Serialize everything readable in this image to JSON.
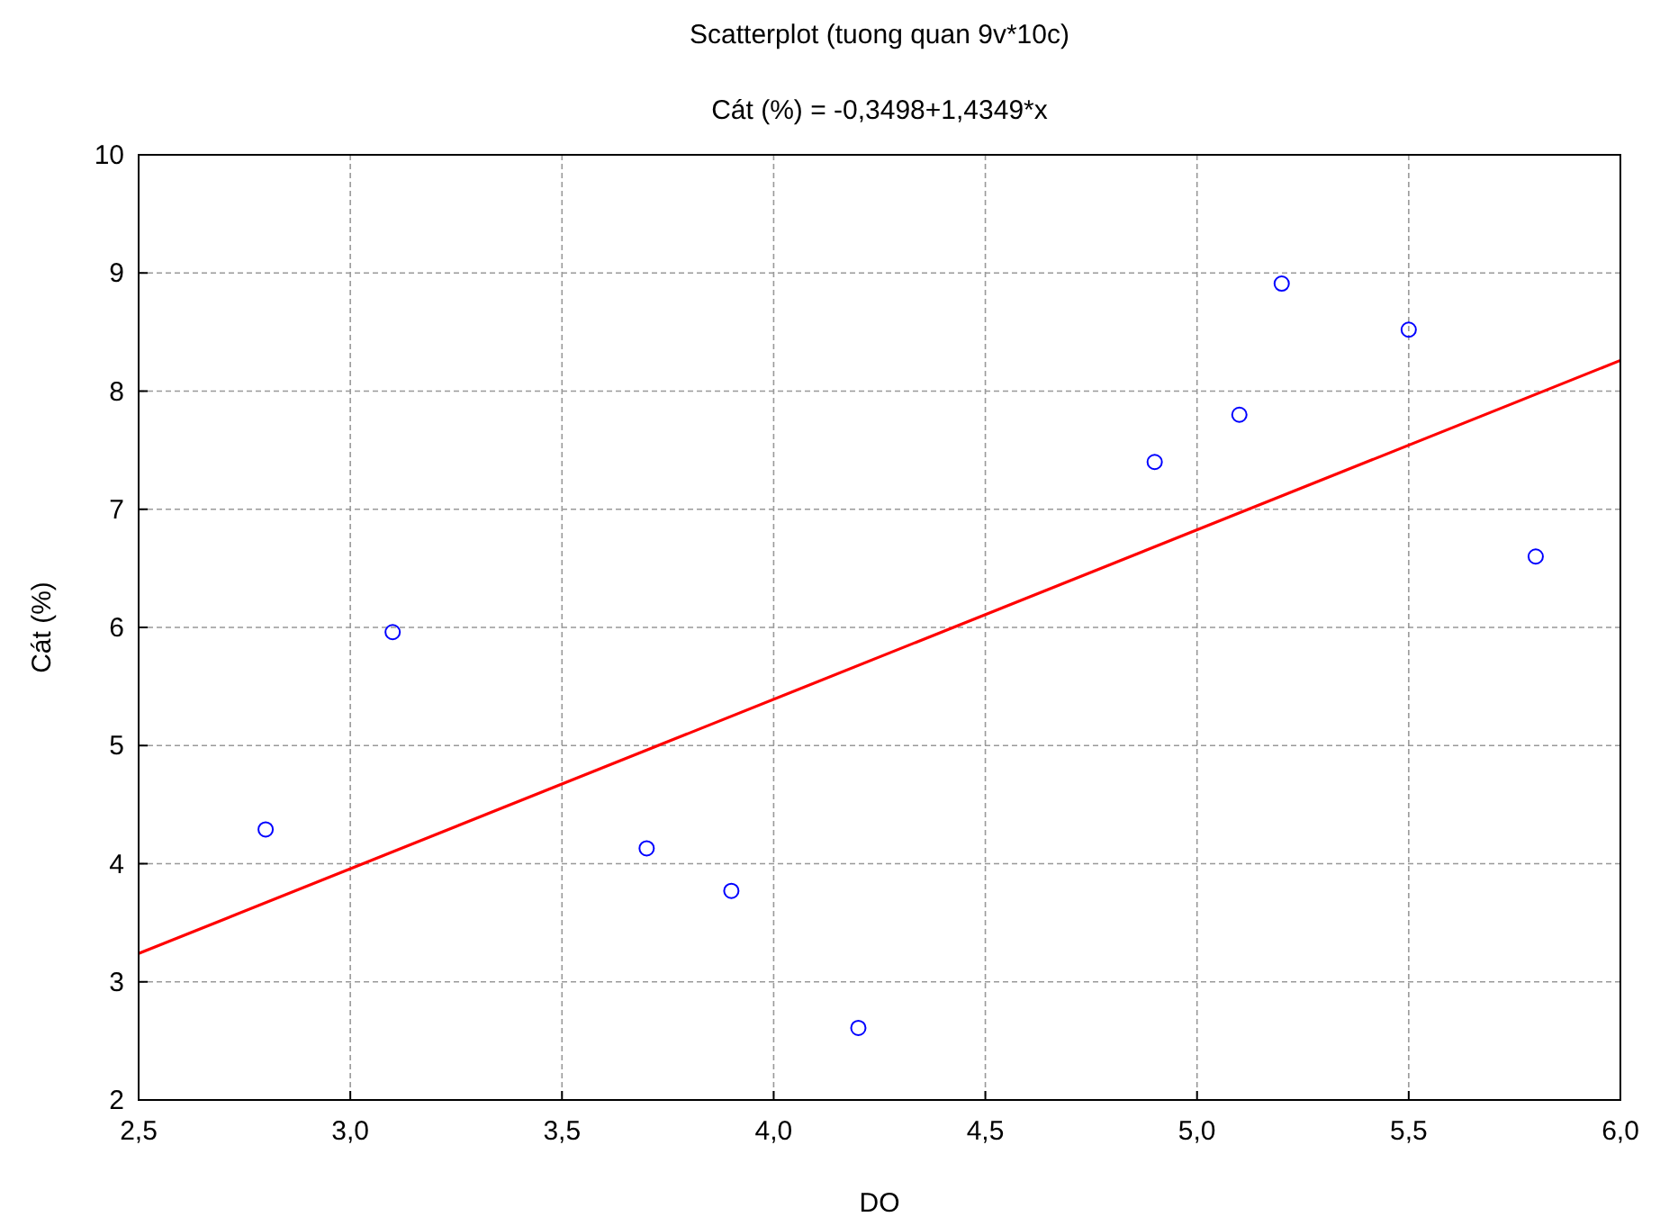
{
  "chart_data": {
    "type": "scatter",
    "title": "Scatterplot (tuong quan 9v*10c)",
    "subtitle": "Cát (%) = -0,3498+1,4349*x",
    "xlabel": "DO",
    "ylabel": "Cát (%)",
    "xlim": [
      2.5,
      6.0
    ],
    "ylim": [
      2,
      10
    ],
    "xticks": [
      {
        "value": 2.5,
        "label": "2,5"
      },
      {
        "value": 3.0,
        "label": "3,0"
      },
      {
        "value": 3.5,
        "label": "3,5"
      },
      {
        "value": 4.0,
        "label": "4,0"
      },
      {
        "value": 4.5,
        "label": "4,5"
      },
      {
        "value": 5.0,
        "label": "5,0"
      },
      {
        "value": 5.5,
        "label": "5,5"
      },
      {
        "value": 6.0,
        "label": "6,0"
      }
    ],
    "yticks": [
      2,
      3,
      4,
      5,
      6,
      7,
      8,
      9,
      10
    ],
    "grid": true,
    "marker": "circle",
    "series": [
      {
        "color": "#0000ff",
        "x": [
          2.8,
          3.1,
          3.7,
          3.9,
          4.2,
          4.9,
          5.1,
          5.2,
          5.5,
          5.8
        ],
        "values": [
          4.29,
          5.96,
          4.13,
          3.77,
          2.61,
          7.4,
          7.8,
          8.91,
          8.52,
          6.6
        ]
      },
      {
        "type": "line",
        "color": "#ff0000",
        "line_style": "solid",
        "marker": "none",
        "x": [
          2.5,
          6.0
        ],
        "values": [
          3.24,
          8.26
        ]
      }
    ]
  }
}
